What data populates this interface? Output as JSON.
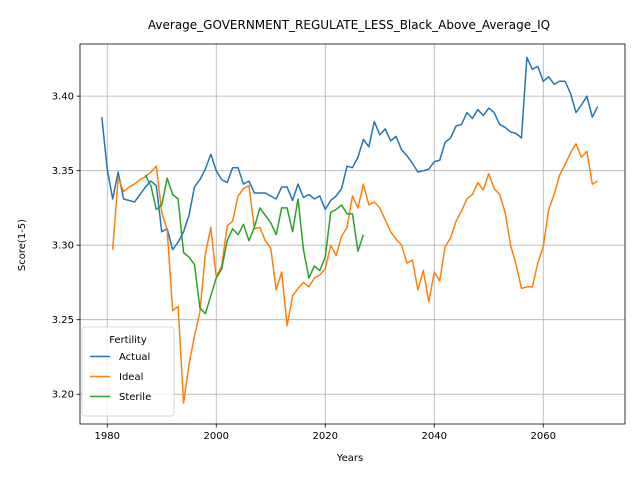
{
  "chart_data": {
    "type": "line",
    "title": "Average_GOVERNMENT_REGULATE_LESS_Black_Above_Average_IQ",
    "xlabel": "Years",
    "ylabel": "Score(1-5)",
    "xlim": [
      1975,
      2075
    ],
    "ylim": [
      3.18,
      3.435
    ],
    "xticks": [
      1980,
      2000,
      2020,
      2040,
      2060
    ],
    "yticks": [
      3.2,
      3.25,
      3.3,
      3.35,
      3.4
    ],
    "ytick_labels": [
      "3.20",
      "3.25",
      "3.30",
      "3.35",
      "3.40"
    ],
    "grid": true,
    "legend": {
      "title": "Fertility",
      "placement": "lower-left"
    },
    "series": [
      {
        "name": "Actual",
        "color": "#1f77b4",
        "points": [
          [
            1979,
            3.386
          ],
          [
            1980,
            3.351
          ],
          [
            1981,
            3.331
          ],
          [
            1982,
            3.349
          ],
          [
            1983,
            3.331
          ],
          [
            1984,
            3.33
          ],
          [
            1985,
            3.329
          ],
          [
            1986,
            3.334
          ],
          [
            1987,
            3.339
          ],
          [
            1988,
            3.343
          ],
          [
            1989,
            3.34
          ],
          [
            1990,
            3.309
          ],
          [
            1991,
            3.311
          ],
          [
            1992,
            3.297
          ],
          [
            1993,
            3.302
          ],
          [
            1994,
            3.309
          ],
          [
            1995,
            3.32
          ],
          [
            1996,
            3.339
          ],
          [
            1997,
            3.344
          ],
          [
            1998,
            3.351
          ],
          [
            1999,
            3.361
          ],
          [
            2000,
            3.35
          ],
          [
            2001,
            3.344
          ],
          [
            2002,
            3.342
          ],
          [
            2003,
            3.352
          ],
          [
            2004,
            3.352
          ],
          [
            2005,
            3.341
          ],
          [
            2006,
            3.343
          ],
          [
            2007,
            3.335
          ],
          [
            2008,
            3.335
          ],
          [
            2009,
            3.335
          ],
          [
            2010,
            3.333
          ],
          [
            2011,
            3.331
          ],
          [
            2012,
            3.339
          ],
          [
            2013,
            3.339
          ],
          [
            2014,
            3.33
          ],
          [
            2015,
            3.341
          ],
          [
            2016,
            3.332
          ],
          [
            2017,
            3.334
          ],
          [
            2018,
            3.331
          ],
          [
            2019,
            3.333
          ],
          [
            2020,
            3.324
          ],
          [
            2021,
            3.33
          ],
          [
            2022,
            3.333
          ],
          [
            2023,
            3.338
          ],
          [
            2024,
            3.353
          ],
          [
            2025,
            3.352
          ],
          [
            2026,
            3.359
          ],
          [
            2027,
            3.371
          ],
          [
            2028,
            3.366
          ],
          [
            2029,
            3.383
          ],
          [
            2030,
            3.374
          ],
          [
            2031,
            3.378
          ],
          [
            2032,
            3.37
          ],
          [
            2033,
            3.373
          ],
          [
            2034,
            3.364
          ],
          [
            2035,
            3.36
          ],
          [
            2036,
            3.355
          ],
          [
            2037,
            3.349
          ],
          [
            2038,
            3.35
          ],
          [
            2039,
            3.351
          ],
          [
            2040,
            3.356
          ],
          [
            2041,
            3.357
          ],
          [
            2042,
            3.369
          ],
          [
            2043,
            3.372
          ],
          [
            2044,
            3.38
          ],
          [
            2045,
            3.381
          ],
          [
            2046,
            3.389
          ],
          [
            2047,
            3.385
          ],
          [
            2048,
            3.391
          ],
          [
            2049,
            3.387
          ],
          [
            2050,
            3.392
          ],
          [
            2051,
            3.389
          ],
          [
            2052,
            3.381
          ],
          [
            2053,
            3.379
          ],
          [
            2054,
            3.376
          ],
          [
            2055,
            3.375
          ],
          [
            2056,
            3.372
          ],
          [
            2057,
            3.426
          ],
          [
            2058,
            3.418
          ],
          [
            2059,
            3.42
          ],
          [
            2060,
            3.41
          ],
          [
            2061,
            3.413
          ],
          [
            2062,
            3.408
          ],
          [
            2063,
            3.41
          ],
          [
            2064,
            3.41
          ],
          [
            2065,
            3.402
          ],
          [
            2066,
            3.389
          ],
          [
            2067,
            3.394
          ],
          [
            2068,
            3.4
          ],
          [
            2069,
            3.386
          ],
          [
            2070,
            3.393
          ]
        ]
      },
      {
        "name": "Ideal",
        "color": "#ff7f0e",
        "points": [
          [
            1981,
            3.297
          ],
          [
            1982,
            3.345
          ],
          [
            1983,
            3.336
          ],
          [
            1984,
            3.339
          ],
          [
            1985,
            3.341
          ],
          [
            1986,
            3.344
          ],
          [
            1987,
            3.346
          ],
          [
            1988,
            3.349
          ],
          [
            1989,
            3.353
          ],
          [
            1990,
            3.322
          ],
          [
            1991,
            3.31
          ],
          [
            1992,
            3.256
          ],
          [
            1993,
            3.259
          ],
          [
            1994,
            3.194
          ],
          [
            1995,
            3.22
          ],
          [
            1996,
            3.239
          ],
          [
            1997,
            3.255
          ],
          [
            1998,
            3.294
          ],
          [
            1999,
            3.312
          ],
          [
            2000,
            3.279
          ],
          [
            2001,
            3.286
          ],
          [
            2002,
            3.313
          ],
          [
            2003,
            3.316
          ],
          [
            2004,
            3.333
          ],
          [
            2005,
            3.338
          ],
          [
            2006,
            3.34
          ],
          [
            2007,
            3.311
          ],
          [
            2008,
            3.312
          ],
          [
            2009,
            3.303
          ],
          [
            2010,
            3.298
          ],
          [
            2011,
            3.27
          ],
          [
            2012,
            3.282
          ],
          [
            2013,
            3.246
          ],
          [
            2014,
            3.266
          ],
          [
            2015,
            3.271
          ],
          [
            2016,
            3.275
          ],
          [
            2017,
            3.272
          ],
          [
            2018,
            3.278
          ],
          [
            2019,
            3.28
          ],
          [
            2020,
            3.284
          ],
          [
            2021,
            3.3
          ],
          [
            2022,
            3.293
          ],
          [
            2023,
            3.306
          ],
          [
            2024,
            3.312
          ],
          [
            2025,
            3.333
          ],
          [
            2026,
            3.325
          ],
          [
            2027,
            3.341
          ],
          [
            2028,
            3.327
          ],
          [
            2029,
            3.329
          ],
          [
            2030,
            3.325
          ],
          [
            2031,
            3.317
          ],
          [
            2032,
            3.309
          ],
          [
            2033,
            3.304
          ],
          [
            2034,
            3.3
          ],
          [
            2035,
            3.288
          ],
          [
            2036,
            3.29
          ],
          [
            2037,
            3.27
          ],
          [
            2038,
            3.283
          ],
          [
            2039,
            3.262
          ],
          [
            2040,
            3.282
          ],
          [
            2041,
            3.276
          ],
          [
            2042,
            3.299
          ],
          [
            2043,
            3.305
          ],
          [
            2044,
            3.316
          ],
          [
            2045,
            3.323
          ],
          [
            2046,
            3.331
          ],
          [
            2047,
            3.334
          ],
          [
            2048,
            3.342
          ],
          [
            2049,
            3.337
          ],
          [
            2050,
            3.348
          ],
          [
            2051,
            3.338
          ],
          [
            2052,
            3.334
          ],
          [
            2053,
            3.322
          ],
          [
            2054,
            3.3
          ],
          [
            2055,
            3.287
          ],
          [
            2056,
            3.271
          ],
          [
            2057,
            3.272
          ],
          [
            2058,
            3.272
          ],
          [
            2059,
            3.288
          ],
          [
            2060,
            3.299
          ],
          [
            2061,
            3.324
          ],
          [
            2062,
            3.334
          ],
          [
            2063,
            3.347
          ],
          [
            2064,
            3.354
          ],
          [
            2065,
            3.362
          ],
          [
            2066,
            3.368
          ],
          [
            2067,
            3.359
          ],
          [
            2068,
            3.363
          ],
          [
            2069,
            3.341
          ],
          [
            2070,
            3.343
          ]
        ]
      },
      {
        "name": "Sterile",
        "color": "#2ca02c",
        "points": [
          [
            1987,
            3.347
          ],
          [
            1988,
            3.34
          ],
          [
            1989,
            3.324
          ],
          [
            1990,
            3.327
          ],
          [
            1991,
            3.345
          ],
          [
            1992,
            3.334
          ],
          [
            1993,
            3.331
          ],
          [
            1994,
            3.295
          ],
          [
            1995,
            3.292
          ],
          [
            1996,
            3.287
          ],
          [
            1997,
            3.258
          ],
          [
            1998,
            3.254
          ],
          [
            1999,
            3.266
          ],
          [
            2000,
            3.278
          ],
          [
            2001,
            3.284
          ],
          [
            2002,
            3.303
          ],
          [
            2003,
            3.311
          ],
          [
            2004,
            3.307
          ],
          [
            2005,
            3.314
          ],
          [
            2006,
            3.303
          ],
          [
            2007,
            3.312
          ],
          [
            2008,
            3.325
          ],
          [
            2009,
            3.32
          ],
          [
            2010,
            3.315
          ],
          [
            2011,
            3.307
          ],
          [
            2012,
            3.325
          ],
          [
            2013,
            3.325
          ],
          [
            2014,
            3.309
          ],
          [
            2015,
            3.331
          ],
          [
            2016,
            3.297
          ],
          [
            2017,
            3.278
          ],
          [
            2018,
            3.286
          ],
          [
            2019,
            3.283
          ],
          [
            2020,
            3.292
          ],
          [
            2021,
            3.322
          ],
          [
            2022,
            3.324
          ],
          [
            2023,
            3.327
          ],
          [
            2024,
            3.321
          ],
          [
            2025,
            3.321
          ],
          [
            2026,
            3.296
          ],
          [
            2027,
            3.307
          ]
        ]
      }
    ]
  }
}
